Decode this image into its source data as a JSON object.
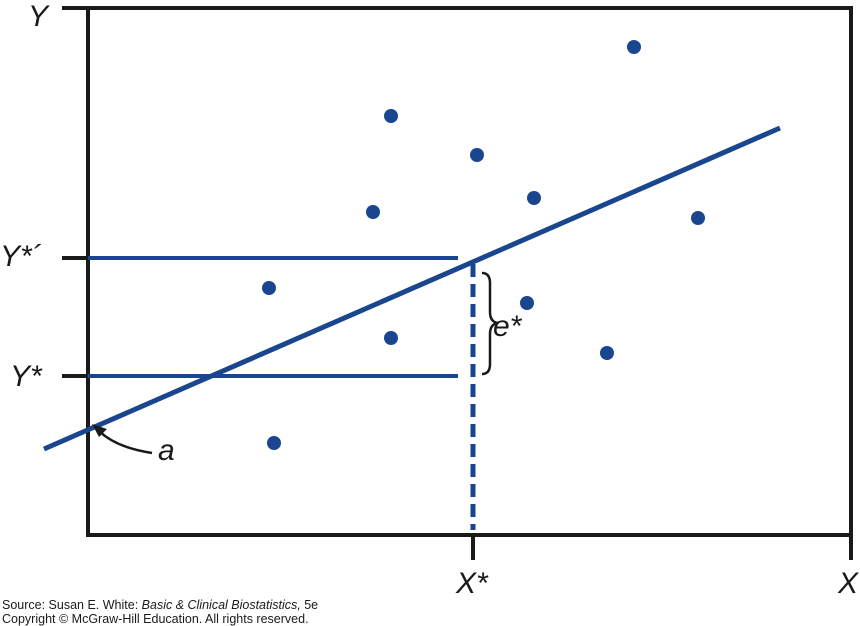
{
  "labels": {
    "y_axis": "Y",
    "x_axis": "X",
    "y_star_prime": "Y*´",
    "y_star": "Y*",
    "x_star": "X*",
    "e_star": "e*",
    "intercept": "a"
  },
  "credit": {
    "source_prefix": "Source: Susan E. White: ",
    "source_title": "Basic & Clinical Biostatistics,",
    "source_suffix": " 5e",
    "copyright": "Copyright © McGraw-Hill Education. All rights reserved."
  },
  "colors": {
    "line": "#1a4690",
    "point": "#1a4690",
    "axis": "#1a1a1a"
  }
}
